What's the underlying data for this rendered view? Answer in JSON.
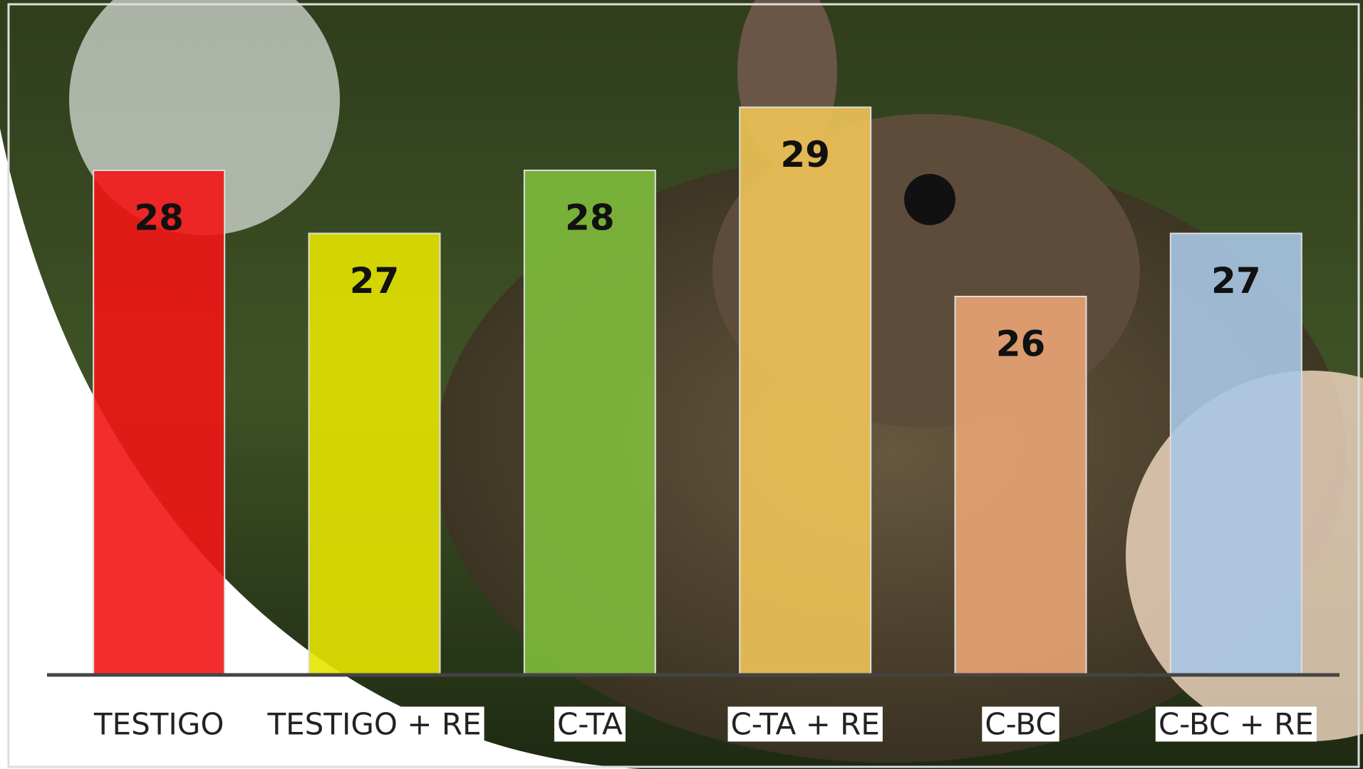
{
  "chart_data": {
    "type": "bar",
    "categories": [
      "TESTIGO",
      "TESTIGO + RE",
      "C-TA",
      "C-TA + RE",
      "C-BC",
      "C-BC + RE"
    ],
    "values": [
      28,
      27,
      28,
      29,
      26,
      27
    ],
    "colors": [
      "#f21616",
      "#e4e400",
      "#7fbd3c",
      "#f0c456",
      "#e9a474",
      "#a9c7e4"
    ],
    "ylim": [
      20,
      30
    ]
  }
}
